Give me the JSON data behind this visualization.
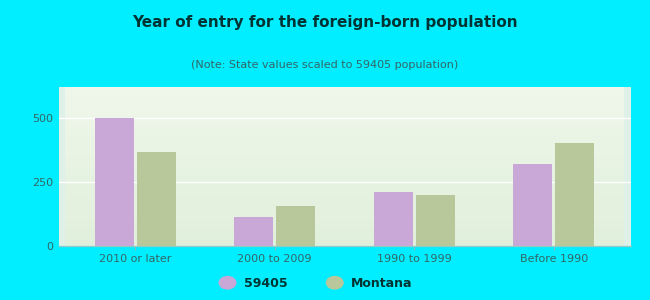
{
  "title": "Year of entry for the foreign-born population",
  "subtitle": "(Note: State values scaled to 59405 population)",
  "categories": [
    "2010 or later",
    "2000 to 2009",
    "1990 to 1999",
    "Before 1990"
  ],
  "values_59405": [
    500,
    115,
    210,
    320
  ],
  "values_montana": [
    365,
    155,
    200,
    400
  ],
  "bar_color_59405": "#c9a8d8",
  "bar_color_montana": "#b8c89a",
  "background_outer": "#00eeff",
  "background_plot_top": "#e8f5e8",
  "background_plot_bottom": "#c8eee0",
  "ylim": [
    0,
    620
  ],
  "yticks": [
    0,
    250,
    500
  ],
  "bar_width": 0.28,
  "legend_label_1": "59405",
  "legend_label_2": "Montana",
  "title_fontsize": 11,
  "subtitle_fontsize": 8,
  "tick_fontsize": 8,
  "legend_fontsize": 9,
  "title_color": "#003333",
  "subtitle_color": "#336666",
  "tick_color": "#336666"
}
